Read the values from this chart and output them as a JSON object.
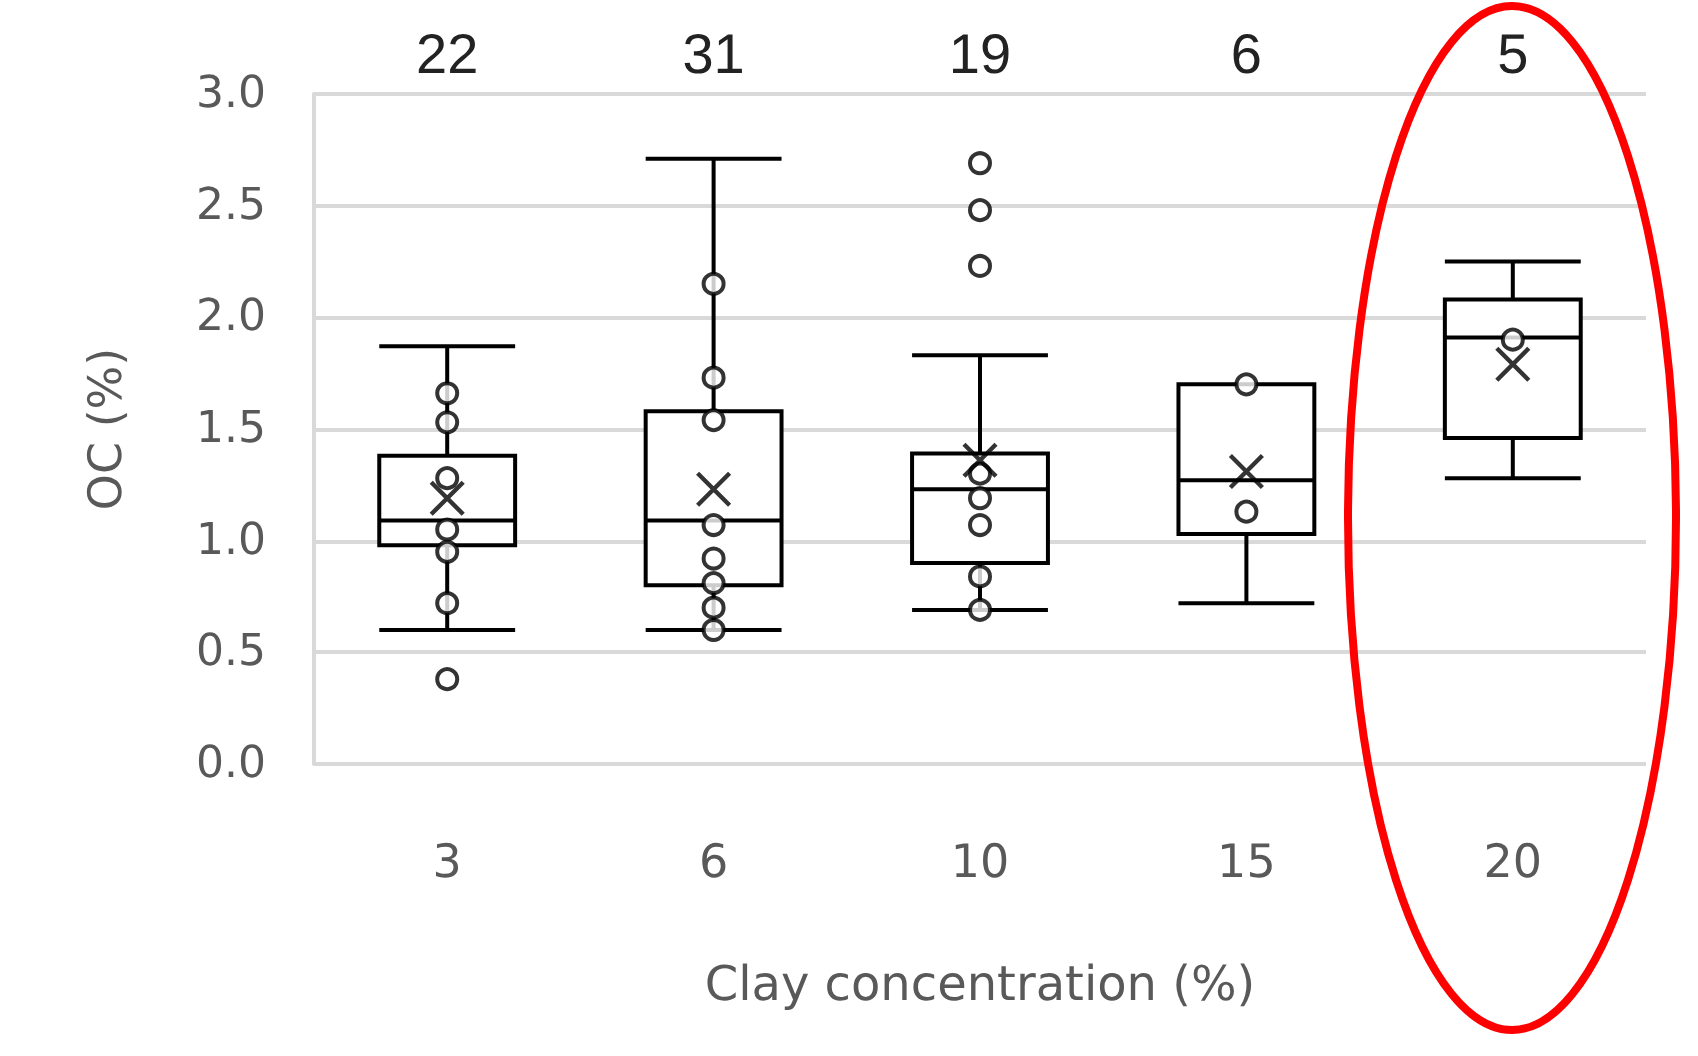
{
  "chart_data": {
    "type": "box",
    "categories": [
      "3",
      "6",
      "10",
      "15",
      "20"
    ],
    "xlabel": "Clay concentration (%)",
    "ylabel": "OC (%)",
    "ylim": [
      0,
      3
    ],
    "yticks": [
      {
        "value": 0,
        "label": "0.0"
      },
      0.5,
      {
        "value": 1,
        "label": "1.0"
      },
      1.5,
      {
        "value": 2,
        "label": "2.0"
      },
      2.5,
      {
        "value": 3,
        "label": "3.0"
      }
    ],
    "grid": "y",
    "boxes": [
      {
        "low": 0.6,
        "q1": 0.98,
        "median": 1.09,
        "q3": 1.38,
        "high": 1.87,
        "mean": 1.19,
        "outliers": [
          0.38
        ]
      },
      {
        "low": 0.6,
        "q1": 0.8,
        "median": 1.09,
        "q3": 1.58,
        "high": 2.71,
        "mean": 1.23
      },
      {
        "low": 0.69,
        "q1": 0.9,
        "median": 1.23,
        "q3": 1.39,
        "high": 1.83,
        "mean": 1.36,
        "outliers": [
          2.69,
          2.48,
          2.23
        ]
      },
      {
        "low": 0.72,
        "q1": 1.03,
        "median": 1.27,
        "q3": 1.7,
        "high": 1.7,
        "mean": 1.31
      },
      {
        "low": 1.28,
        "q1": 1.46,
        "median": 1.91,
        "q3": 2.08,
        "high": 2.25,
        "mean": 1.79
      }
    ],
    "series": [
      {
        "type": "scatter",
        "color": "#000000",
        "marker": "circle",
        "x": [
          "3",
          "3",
          "3",
          "3",
          "3",
          "3",
          "6",
          "6",
          "6",
          "6",
          "6",
          "6",
          "6",
          "6",
          "10",
          "10",
          "10",
          "10",
          "10",
          "15",
          "15",
          "20"
        ],
        "values": [
          1.66,
          1.53,
          1.28,
          1.05,
          0.95,
          0.72,
          2.15,
          1.73,
          1.54,
          1.07,
          0.92,
          0.81,
          0.7,
          0.6,
          1.3,
          1.19,
          1.07,
          0.84,
          0.69,
          1.7,
          1.13,
          1.9
        ]
      }
    ],
    "annotations": [
      "22",
      "31",
      "19",
      "6",
      "5"
    ]
  }
}
